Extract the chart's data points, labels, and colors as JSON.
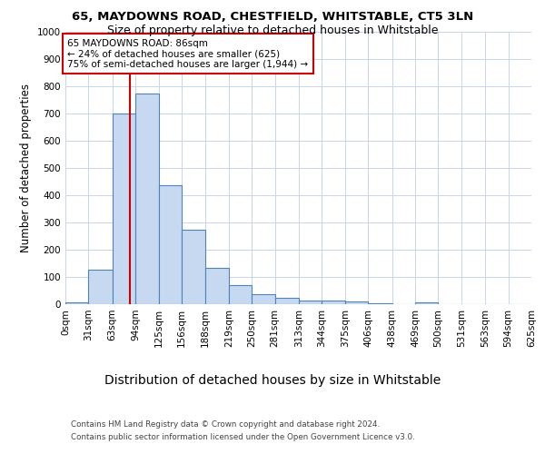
{
  "title1": "65, MAYDOWNS ROAD, CHESTFIELD, WHITSTABLE, CT5 3LN",
  "title2": "Size of property relative to detached houses in Whitstable",
  "xlabel": "Distribution of detached houses by size in Whitstable",
  "ylabel": "Number of detached properties",
  "bin_edges": [
    0,
    31,
    63,
    94,
    125,
    156,
    188,
    219,
    250,
    281,
    313,
    344,
    375,
    406,
    438,
    469,
    500,
    531,
    563,
    594,
    625
  ],
  "bar_heights": [
    8,
    128,
    700,
    775,
    438,
    275,
    133,
    70,
    38,
    25,
    13,
    13,
    10,
    5,
    0,
    8,
    0,
    0,
    0,
    0
  ],
  "bar_facecolor": "#c6d9f0",
  "bar_edgecolor": "#4f81bd",
  "bar_linewidth": 0.8,
  "vline_x": 86,
  "vline_color": "#cc0000",
  "vline_linewidth": 1.5,
  "ylim": [
    0,
    1000
  ],
  "yticks": [
    0,
    100,
    200,
    300,
    400,
    500,
    600,
    700,
    800,
    900,
    1000
  ],
  "annotation_line1": "65 MAYDOWNS ROAD: 86sqm",
  "annotation_line2": "← 24% of detached houses are smaller (625)",
  "annotation_line3": "75% of semi-detached houses are larger (1,944) →",
  "footer_line1": "Contains HM Land Registry data © Crown copyright and database right 2024.",
  "footer_line2": "Contains public sector information licensed under the Open Government Licence v3.0.",
  "background_color": "#ffffff",
  "grid_color": "#c8d4e8",
  "tick_label_fontsize": 7.5,
  "axis_label_fontsize": 9,
  "ylabel_fontsize": 8.5,
  "title_fontsize1": 9.5,
  "title_fontsize2": 9
}
